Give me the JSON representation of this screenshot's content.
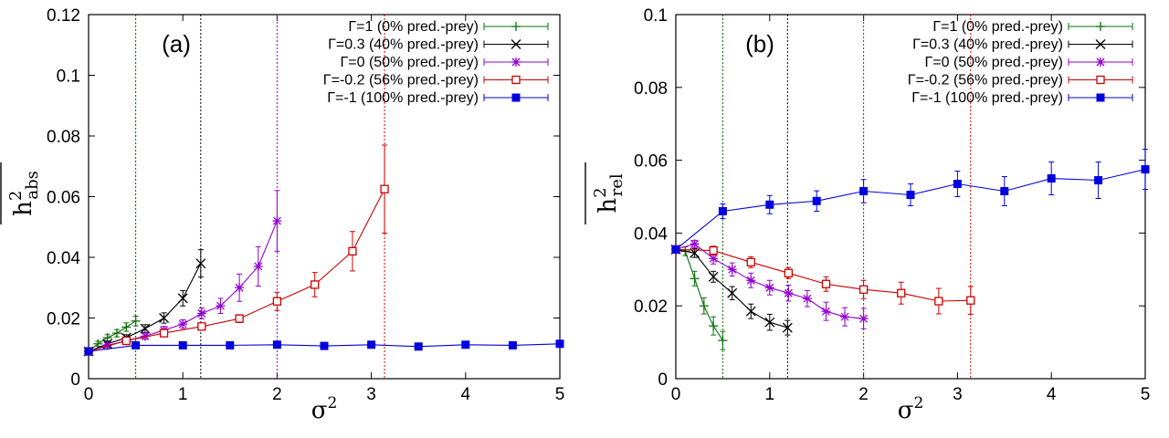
{
  "chart_data": [
    {
      "type": "line",
      "panel_label": "(a)",
      "xlabel_base": "σ",
      "xlabel_sup": "2",
      "ylabel_base": "h",
      "ylabel_sup": "2",
      "ylabel_sub": "abs",
      "xlim": [
        0,
        5
      ],
      "ylim": [
        0,
        0.12
      ],
      "xticks": [
        0,
        1,
        2,
        3,
        4,
        5
      ],
      "yticks": [
        0,
        0.02,
        0.04,
        0.06,
        0.08,
        0.1,
        0.12
      ],
      "ytick_labels": [
        "0",
        "0.02",
        "0.04",
        "0.06",
        "0.08",
        "0.1",
        "0.12"
      ],
      "legend_position": "top-right",
      "vlines": [
        {
          "x": 0.5,
          "color": "#006400"
        },
        {
          "x": 1.19,
          "color": "#000000"
        },
        {
          "x": 2.0,
          "color": "#9400d3"
        },
        {
          "x": 3.14,
          "color": "#cc0000"
        }
      ],
      "series": [
        {
          "name": "Γ=1 (0% pred.-prey)",
          "color": "#0a700a",
          "marker": "plus",
          "x": [
            0,
            0.1,
            0.2,
            0.3,
            0.4,
            0.5
          ],
          "y": [
            0.009,
            0.0115,
            0.0135,
            0.015,
            0.017,
            0.019
          ],
          "err": [
            0.0005,
            0.0008,
            0.001,
            0.0012,
            0.0014,
            0.0016
          ]
        },
        {
          "name": "Γ=0.3 (40% pred.-prey)",
          "color": "#000000",
          "marker": "x",
          "x": [
            0,
            0.2,
            0.4,
            0.6,
            0.8,
            1.0,
            1.19
          ],
          "y": [
            0.009,
            0.0115,
            0.0135,
            0.0165,
            0.02,
            0.0265,
            0.038
          ],
          "err": [
            0.0005,
            0.0008,
            0.001,
            0.0013,
            0.0017,
            0.0025,
            0.0045
          ]
        },
        {
          "name": "Γ=0 (50% pred.-prey)",
          "color": "#9400d3",
          "marker": "star",
          "x": [
            0,
            0.2,
            0.4,
            0.6,
            0.8,
            1.0,
            1.2,
            1.4,
            1.6,
            1.8,
            2.0
          ],
          "y": [
            0.009,
            0.011,
            0.0125,
            0.014,
            0.016,
            0.018,
            0.0215,
            0.024,
            0.03,
            0.037,
            0.052
          ],
          "err": [
            0.0005,
            0.0007,
            0.0009,
            0.001,
            0.0012,
            0.0014,
            0.0018,
            0.0025,
            0.0045,
            0.0065,
            0.01
          ]
        },
        {
          "name": "Γ=-0.2 (56% pred.-prey)",
          "color": "#cc0000",
          "marker": "open-square",
          "x": [
            0,
            0.4,
            0.8,
            1.2,
            1.6,
            2.0,
            2.4,
            2.8,
            3.14
          ],
          "y": [
            0.009,
            0.0125,
            0.015,
            0.0172,
            0.0198,
            0.0255,
            0.031,
            0.042,
            0.0625
          ],
          "err": [
            0.0005,
            0.0008,
            0.0009,
            0.001,
            0.0013,
            0.003,
            0.004,
            0.0065,
            0.0145
          ]
        },
        {
          "name": "Γ=-1 (100% pred.-prey)",
          "color": "#0000dd",
          "marker": "filled-square",
          "x": [
            0,
            0.5,
            1.0,
            1.5,
            2.0,
            2.5,
            3.0,
            3.5,
            4.0,
            4.5,
            5.0
          ],
          "y": [
            0.009,
            0.011,
            0.011,
            0.011,
            0.0112,
            0.0108,
            0.0112,
            0.0106,
            0.0112,
            0.011,
            0.0115
          ],
          "err": [
            0.0004,
            0.0006,
            0.0006,
            0.0006,
            0.0006,
            0.0006,
            0.0006,
            0.0008,
            0.0009,
            0.0008,
            0.0008
          ]
        }
      ]
    },
    {
      "type": "line",
      "panel_label": "(b)",
      "xlabel_base": "σ",
      "xlabel_sup": "2",
      "ylabel_base": "h",
      "ylabel_sup": "2",
      "ylabel_sub": "rel",
      "xlim": [
        0,
        5
      ],
      "ylim": [
        0,
        0.1
      ],
      "xticks": [
        0,
        1,
        2,
        3,
        4,
        5
      ],
      "yticks": [
        0,
        0.02,
        0.04,
        0.06,
        0.08,
        0.1
      ],
      "ytick_labels": [
        "0",
        "0.02",
        "0.04",
        "0.06",
        "0.08",
        "0.1"
      ],
      "legend_position": "top-right",
      "vlines": [
        {
          "x": 0.5,
          "color": "#006400"
        },
        {
          "x": 1.19,
          "color": "#000000"
        },
        {
          "x": 2.0,
          "color": "#9400d3"
        },
        {
          "x": 3.14,
          "color": "#cc0000"
        }
      ],
      "series": [
        {
          "name": "Γ=1 (0% pred.-prey)",
          "color": "#0a700a",
          "marker": "plus",
          "x": [
            0,
            0.1,
            0.2,
            0.3,
            0.4,
            0.5
          ],
          "y": [
            0.0355,
            0.035,
            0.0275,
            0.02,
            0.0145,
            0.0105
          ],
          "err": [
            0.0006,
            0.0012,
            0.002,
            0.0022,
            0.0025,
            0.0025
          ]
        },
        {
          "name": "Γ=0.3 (40% pred.-prey)",
          "color": "#000000",
          "marker": "x",
          "x": [
            0,
            0.2,
            0.4,
            0.6,
            0.8,
            1.0,
            1.19
          ],
          "y": [
            0.0355,
            0.0345,
            0.028,
            0.0235,
            0.0185,
            0.0155,
            0.014
          ],
          "err": [
            0.0006,
            0.0012,
            0.0015,
            0.0018,
            0.002,
            0.0022,
            0.002
          ]
        },
        {
          "name": "Γ=0 (50% pred.-prey)",
          "color": "#9400d3",
          "marker": "star",
          "x": [
            0,
            0.2,
            0.4,
            0.6,
            0.8,
            1.0,
            1.2,
            1.4,
            1.6,
            1.8,
            2.0
          ],
          "y": [
            0.0355,
            0.037,
            0.033,
            0.03,
            0.027,
            0.025,
            0.0235,
            0.022,
            0.0185,
            0.017,
            0.0165
          ],
          "err": [
            0.0006,
            0.001,
            0.0015,
            0.0018,
            0.002,
            0.002,
            0.0022,
            0.0022,
            0.0025,
            0.0025,
            0.0028
          ]
        },
        {
          "name": "Γ=-0.2 (56% pred.-prey)",
          "color": "#cc0000",
          "marker": "open-square",
          "x": [
            0,
            0.4,
            0.8,
            1.2,
            1.6,
            2.0,
            2.4,
            2.8,
            3.14
          ],
          "y": [
            0.0355,
            0.0352,
            0.032,
            0.029,
            0.026,
            0.0245,
            0.0235,
            0.0213,
            0.0215
          ],
          "err": [
            0.0006,
            0.0012,
            0.0015,
            0.0015,
            0.002,
            0.0025,
            0.003,
            0.0035,
            0.0038
          ]
        },
        {
          "name": "Γ=-1 (100% pred.-prey)",
          "color": "#0000dd",
          "marker": "filled-square",
          "x": [
            0,
            0.5,
            1.0,
            1.5,
            2.0,
            2.5,
            3.0,
            3.5,
            4.0,
            4.5,
            5.0
          ],
          "y": [
            0.0355,
            0.046,
            0.0478,
            0.0488,
            0.0515,
            0.0505,
            0.0535,
            0.0515,
            0.055,
            0.0545,
            0.0575
          ],
          "err": [
            0.0006,
            0.002,
            0.0025,
            0.0028,
            0.0032,
            0.003,
            0.0035,
            0.004,
            0.0045,
            0.005,
            0.0055
          ]
        }
      ]
    }
  ]
}
